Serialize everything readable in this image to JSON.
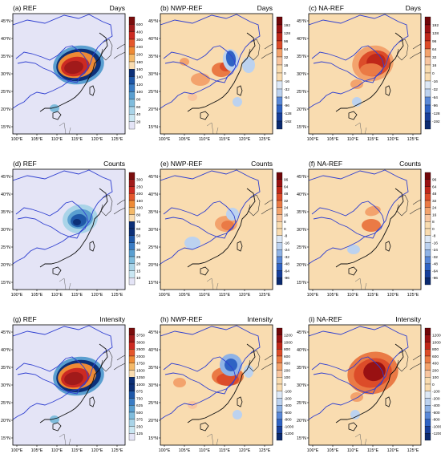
{
  "colors": {
    "ref_bg": "#e4e4f6",
    "diff_bg": "#f9dcb0",
    "china_border": "#2f3fd0",
    "coast": "#111111",
    "ref_levels": [
      "#e4e4f6",
      "#c9e6f2",
      "#a9d4e8",
      "#7fbcdc",
      "#5a9fd0",
      "#3a7cc4",
      "#1f58a8",
      "#0c2f77",
      "#f9dcb0",
      "#f4b968",
      "#ee8a35",
      "#e4562b",
      "#cc2a22",
      "#a11a1a",
      "#7a0d0d"
    ],
    "diff_levels": [
      "#0b2a6f",
      "#173f9a",
      "#2f63c4",
      "#5a89d8",
      "#8fb3e6",
      "#bcd2ef",
      "#dde8f6",
      "#f9dcb0",
      "#f9dcb0",
      "#f8c6a0",
      "#f3a36d",
      "#ea7a45",
      "#dc4c29",
      "#bf2719",
      "#991112",
      "#700609"
    ]
  },
  "tick_labels": {
    "lat": [
      "45°N",
      "40°N",
      "35°N",
      "30°N",
      "25°N",
      "20°N",
      "15°N"
    ],
    "lon": [
      "100°E",
      "105°E",
      "110°E",
      "115°E",
      "120°E",
      "125°E"
    ]
  },
  "panels": [
    {
      "label": "(a) REF",
      "variable": "Days",
      "kind": "ref",
      "colorbar": [
        "600",
        "400",
        "300",
        "240",
        "200",
        "180",
        "160",
        "140",
        "120",
        "100",
        "80",
        "60",
        "40",
        "20"
      ]
    },
    {
      "label": "(b) NWP-REF",
      "variable": "Days",
      "kind": "diff",
      "colorbar": [
        "192",
        "128",
        "96",
        "64",
        "32",
        "16",
        "0",
        "-16",
        "-32",
        "-64",
        "-96",
        "-128",
        "-192"
      ]
    },
    {
      "label": "(c) NA-REF",
      "variable": "Days",
      "kind": "diff",
      "colorbar": [
        "192",
        "128",
        "96",
        "64",
        "32",
        "16",
        "0",
        "-16",
        "-32",
        "-64",
        "-96",
        "-128",
        "-192"
      ]
    },
    {
      "label": "(d) REF",
      "variable": "Counts",
      "kind": "ref",
      "colorbar": [
        "300",
        "250",
        "200",
        "150",
        "100",
        "80",
        "70",
        "60",
        "50",
        "40",
        "30",
        "25",
        "20",
        "15",
        "10"
      ]
    },
    {
      "label": "(e) NWP-REF",
      "variable": "Counts",
      "kind": "diff",
      "colorbar": [
        "96",
        "64",
        "48",
        "32",
        "24",
        "16",
        "8",
        "0",
        "-8",
        "-16",
        "-24",
        "-32",
        "-48",
        "-64",
        "-96"
      ]
    },
    {
      "label": "(f) NA-REF",
      "variable": "Counts",
      "kind": "diff",
      "colorbar": [
        "96",
        "64",
        "48",
        "32",
        "24",
        "16",
        "8",
        "0",
        "-8",
        "-16",
        "-24",
        "-32",
        "-48",
        "-64",
        "-96"
      ]
    },
    {
      "label": "(g) REF",
      "variable": "Intensity",
      "kind": "ref",
      "colorbar": [
        "3750",
        "3000",
        "2500",
        "2000",
        "1750",
        "1500",
        "1250",
        "1000",
        "875",
        "750",
        "625",
        "500",
        "375",
        "250",
        "125"
      ]
    },
    {
      "label": "(h) NWP-REF",
      "variable": "Intensity",
      "kind": "diff",
      "colorbar": [
        "1200",
        "1000",
        "800",
        "600",
        "400",
        "200",
        "100",
        "0",
        "-100",
        "-200",
        "-400",
        "-600",
        "-800",
        "-1000",
        "-1200"
      ]
    },
    {
      "label": "(i) NA-REF",
      "variable": "Intensity",
      "kind": "diff",
      "colorbar": [
        "1200",
        "1000",
        "800",
        "600",
        "400",
        "200",
        "100",
        "0",
        "-100",
        "-200",
        "-400",
        "-600",
        "-800",
        "-1000",
        "-1200"
      ]
    }
  ]
}
